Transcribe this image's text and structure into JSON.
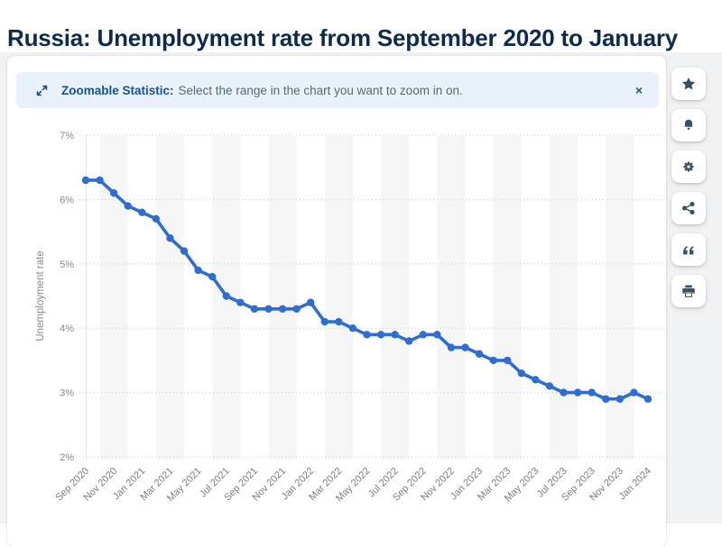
{
  "page": {
    "title": "Russia: Unemployment rate from September 2020 to January"
  },
  "banner": {
    "icon": "zoom-expand-icon",
    "label": "Zoomable Statistic:",
    "text": "Select the range in the chart you want to zoom in on.",
    "close": "×"
  },
  "toolbar": {
    "buttons": [
      {
        "name": "favorite",
        "icon": "star-icon"
      },
      {
        "name": "notification",
        "icon": "bell-icon"
      },
      {
        "name": "settings",
        "icon": "gear-icon"
      },
      {
        "name": "share",
        "icon": "share-icon"
      },
      {
        "name": "cite",
        "icon": "quote-icon"
      },
      {
        "name": "print",
        "icon": "printer-icon"
      }
    ]
  },
  "colors": {
    "title_text": "#0e2b4d",
    "banner_bg": "#e9f1fb",
    "banner_text": "#17548e",
    "icon": "#3c5064",
    "content_bg": "#f1f2f3"
  },
  "chart_data": {
    "type": "line",
    "title": "",
    "xlabel": "",
    "ylabel": "Unemployment rate",
    "ylim": [
      2,
      7
    ],
    "y_ticks": [
      "7%",
      "6%",
      "5%",
      "4%",
      "3%",
      "2%"
    ],
    "grid": "horizontal-dotted",
    "legend": "none",
    "x_tick_step": 2,
    "x": [
      "Sep 2020",
      "Oct 2020",
      "Nov 2020",
      "Dec 2020",
      "Jan 2021",
      "Feb 2021",
      "Mar 2021",
      "Apr 2021",
      "May 2021",
      "Jun 2021",
      "Jul 2021",
      "Aug 2021",
      "Sep 2021",
      "Oct 2021",
      "Nov 2021",
      "Dec 2021",
      "Jan 2022",
      "Feb 2022",
      "Mar 2022",
      "Apr 2022",
      "May 2022",
      "Jun 2022",
      "Jul 2022",
      "Aug 2022",
      "Sep 2022",
      "Oct 2022",
      "Nov 2022",
      "Dec 2022",
      "Jan 2023",
      "Feb 2023",
      "Mar 2023",
      "Apr 2023",
      "May 2023",
      "Jun 2023",
      "Jul 2023",
      "Aug 2023",
      "Sep 2023",
      "Oct 2023",
      "Nov 2023",
      "Dec 2023",
      "Jan 2024"
    ],
    "values": [
      6.3,
      6.3,
      6.1,
      5.9,
      5.8,
      5.7,
      5.4,
      5.2,
      4.9,
      4.8,
      4.5,
      4.4,
      4.3,
      4.3,
      4.3,
      4.3,
      4.4,
      4.1,
      4.1,
      4.0,
      3.9,
      3.9,
      3.9,
      3.8,
      3.9,
      3.9,
      3.7,
      3.7,
      3.6,
      3.5,
      3.5,
      3.3,
      3.2,
      3.1,
      3.0,
      3.0,
      3.0,
      2.9,
      2.9,
      3.0,
      2.9
    ],
    "line_color": "#2f6dd0",
    "stripe_color": "#f6f6f7",
    "grid_color": "#c9c9c9",
    "tick_color": "#8a8a8a",
    "xlabel_color": "#7d7d7d"
  }
}
